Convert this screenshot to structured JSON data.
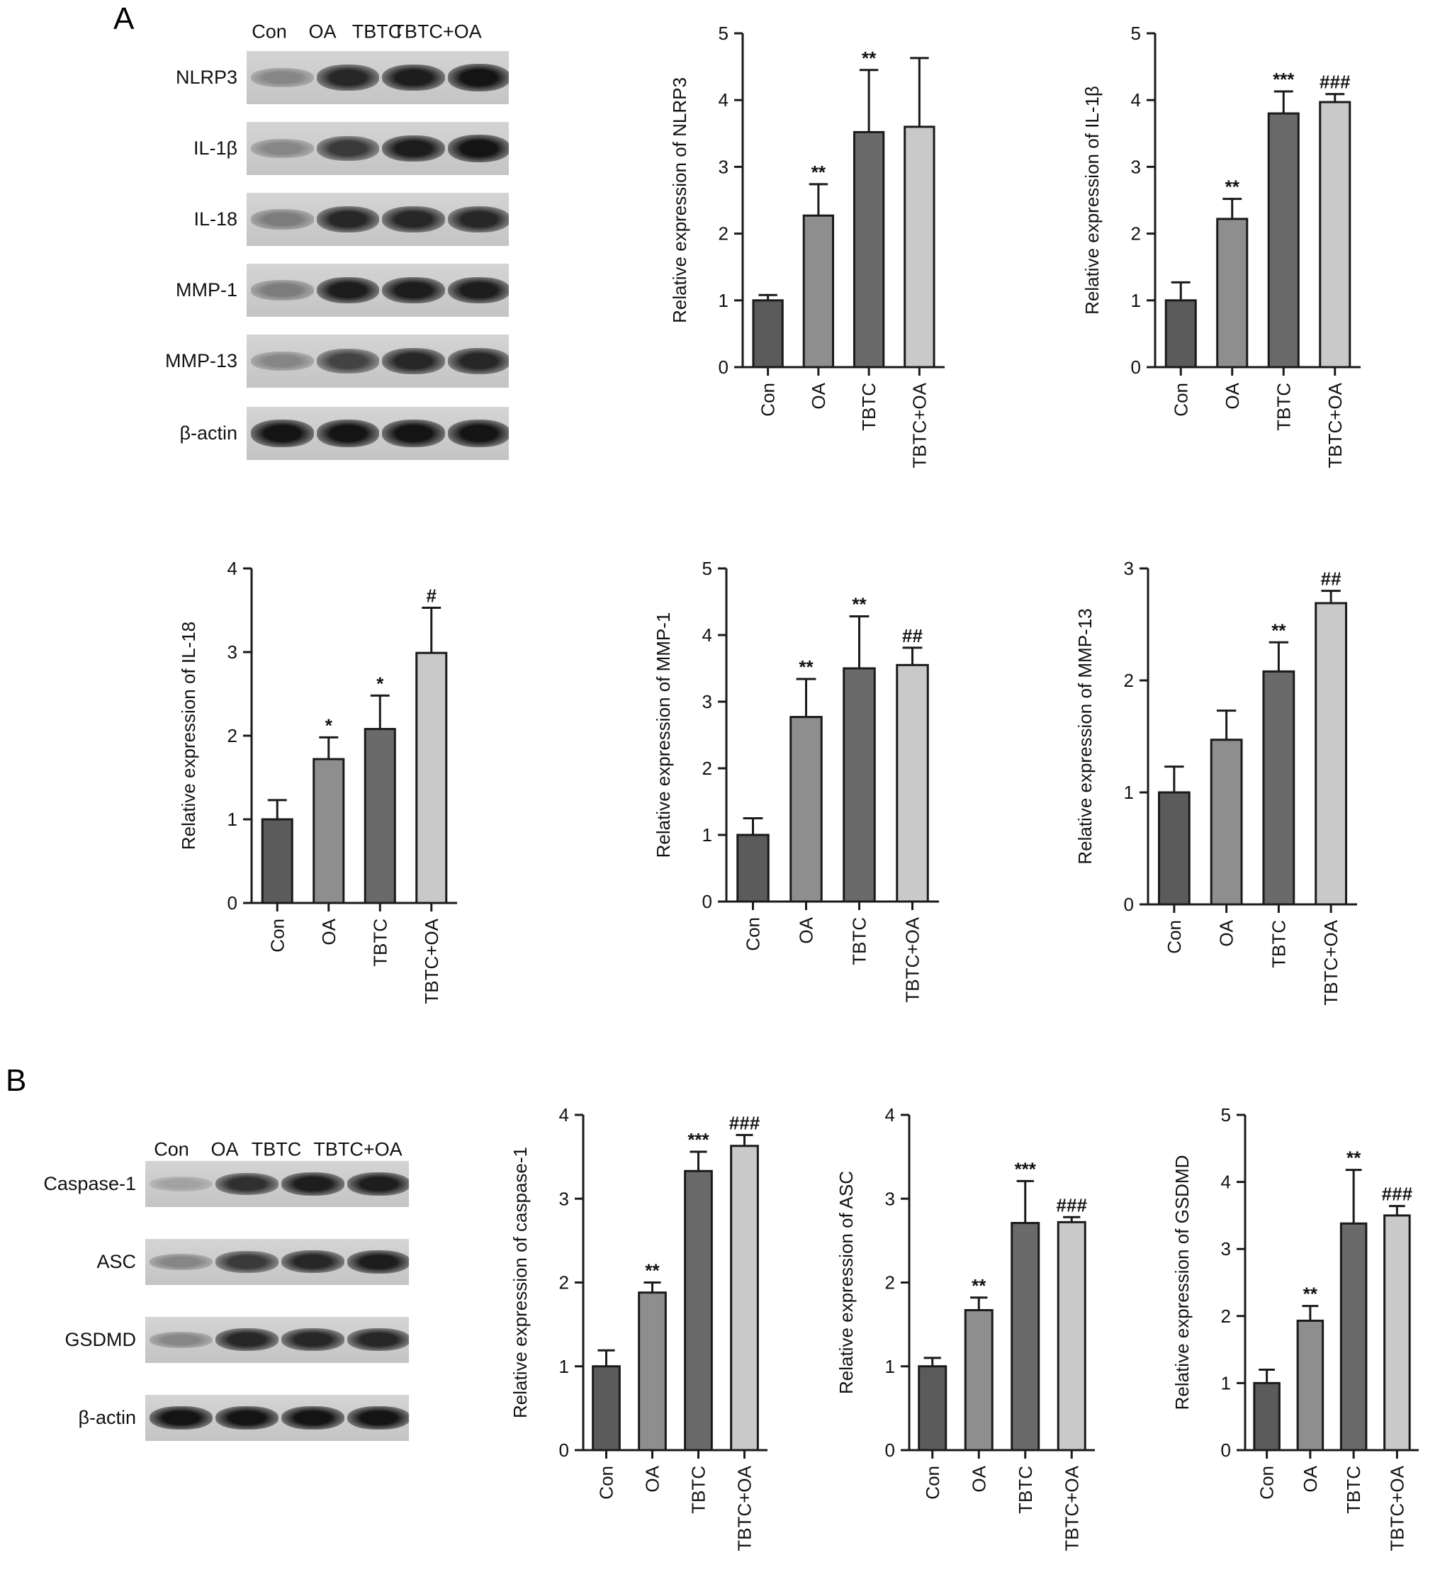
{
  "panels": [
    {
      "label": "A",
      "blot": {
        "lanes": [
          "Con",
          "OA",
          "TBTC",
          "TBTC+OA"
        ],
        "rows": [
          {
            "label": "NLRP3",
            "band_intensity": [
              0.35,
              0.85,
              0.9,
              0.95
            ]
          },
          {
            "label": "IL-1β",
            "band_intensity": [
              0.35,
              0.75,
              0.9,
              0.95
            ]
          },
          {
            "label": "IL-18",
            "band_intensity": [
              0.4,
              0.85,
              0.85,
              0.85
            ]
          },
          {
            "label": "MMP-1",
            "band_intensity": [
              0.4,
              0.9,
              0.9,
              0.9
            ]
          },
          {
            "label": "MMP-13",
            "band_intensity": [
              0.35,
              0.7,
              0.85,
              0.85
            ]
          },
          {
            "label": "β-actin",
            "band_intensity": [
              0.95,
              0.95,
              0.95,
              0.95
            ]
          }
        ]
      }
    },
    {
      "label": "B",
      "blot": {
        "lanes": [
          "Con",
          "OA",
          "TBTC",
          "TBTC+OA"
        ],
        "rows": [
          {
            "label": "Caspase-1",
            "band_intensity": [
              0.2,
              0.8,
              0.9,
              0.9
            ]
          },
          {
            "label": "ASC",
            "band_intensity": [
              0.35,
              0.75,
              0.85,
              0.9
            ]
          },
          {
            "label": "GSDMD",
            "band_intensity": [
              0.35,
              0.85,
              0.85,
              0.85
            ]
          },
          {
            "label": "β-actin",
            "band_intensity": [
              0.95,
              0.95,
              0.95,
              0.95
            ]
          }
        ]
      }
    }
  ],
  "colors": {
    "Con": "#5b5b5b",
    "OA": "#8e8e8e",
    "TBTC": "#6a6a6a",
    "TBTC+OA": "#c9c9c9",
    "bar_edge": "#1a1a1a"
  },
  "chart_data": [
    {
      "type": "bar",
      "categories": [
        "Con",
        "OA",
        "TBTC",
        "TBTC+OA"
      ],
      "values": [
        1.0,
        2.27,
        3.52,
        3.6
      ],
      "errors": [
        0.08,
        0.47,
        0.93,
        1.03
      ],
      "annotations": [
        "",
        "**",
        "**",
        ""
      ],
      "ylabel": "Relative expression of NLRP3",
      "ylim": [
        0,
        5
      ],
      "yticks": [
        0,
        1,
        2,
        3,
        4,
        5
      ]
    },
    {
      "type": "bar",
      "categories": [
        "Con",
        "OA",
        "TBTC",
        "TBTC+OA"
      ],
      "values": [
        1.0,
        2.22,
        3.8,
        3.97
      ],
      "errors": [
        0.27,
        0.3,
        0.33,
        0.12
      ],
      "annotations": [
        "",
        "**",
        "***",
        "###"
      ],
      "ylabel": "Relative expression of IL-1β",
      "ylim": [
        0,
        5
      ],
      "yticks": [
        0,
        1,
        2,
        3,
        4,
        5
      ]
    },
    {
      "type": "bar",
      "categories": [
        "Con",
        "OA",
        "TBTC",
        "TBTC+OA"
      ],
      "values": [
        1.0,
        1.72,
        2.08,
        2.99
      ],
      "errors": [
        0.23,
        0.26,
        0.4,
        0.54
      ],
      "annotations": [
        "",
        "*",
        "*",
        "#"
      ],
      "ylabel": "Relative expression of IL-18",
      "ylim": [
        0,
        4
      ],
      "yticks": [
        0,
        1,
        2,
        3,
        4
      ]
    },
    {
      "type": "bar",
      "categories": [
        "Con",
        "OA",
        "TBTC",
        "TBTC+OA"
      ],
      "values": [
        1.0,
        2.77,
        3.5,
        3.55
      ],
      "errors": [
        0.25,
        0.57,
        0.78,
        0.26
      ],
      "annotations": [
        "",
        "**",
        "**",
        "##"
      ],
      "ylabel": "Relative expression of MMP-1",
      "ylim": [
        0,
        5
      ],
      "yticks": [
        0,
        1,
        2,
        3,
        4,
        5
      ]
    },
    {
      "type": "bar",
      "categories": [
        "Con",
        "OA",
        "TBTC",
        "TBTC+OA"
      ],
      "values": [
        1.0,
        1.47,
        2.08,
        2.69
      ],
      "errors": [
        0.23,
        0.26,
        0.26,
        0.11
      ],
      "annotations": [
        "",
        "",
        "**",
        "##"
      ],
      "ylabel": "Relative expression of MMP-13",
      "ylim": [
        0,
        3
      ],
      "yticks": [
        0,
        1,
        2,
        3
      ]
    },
    {
      "type": "bar",
      "categories": [
        "Con",
        "OA",
        "TBTC",
        "TBTC+OA"
      ],
      "values": [
        1.0,
        1.88,
        3.33,
        3.63
      ],
      "errors": [
        0.19,
        0.12,
        0.23,
        0.13
      ],
      "annotations": [
        "",
        "**",
        "***",
        "###"
      ],
      "ylabel": "Relative expression of caspase-1",
      "ylim": [
        0,
        4
      ],
      "yticks": [
        0,
        1,
        2,
        3,
        4
      ]
    },
    {
      "type": "bar",
      "categories": [
        "Con",
        "OA",
        "TBTC",
        "TBTC+OA"
      ],
      "values": [
        1.0,
        1.67,
        2.71,
        2.72
      ],
      "errors": [
        0.1,
        0.15,
        0.5,
        0.06
      ],
      "annotations": [
        "",
        "**",
        "***",
        "###"
      ],
      "ylabel": "Relative expression of ASC",
      "ylim": [
        0,
        4
      ],
      "yticks": [
        0,
        1,
        2,
        3,
        4
      ]
    },
    {
      "type": "bar",
      "categories": [
        "Con",
        "OA",
        "TBTC",
        "TBTC+OA"
      ],
      "values": [
        1.0,
        1.93,
        3.38,
        3.5
      ],
      "errors": [
        0.2,
        0.22,
        0.8,
        0.14
      ],
      "annotations": [
        "",
        "**",
        "**",
        "###"
      ],
      "ylabel": "Relative expression of GSDMD",
      "ylim": [
        0,
        5
      ],
      "yticks": [
        0,
        1,
        2,
        3,
        4,
        5
      ]
    }
  ]
}
